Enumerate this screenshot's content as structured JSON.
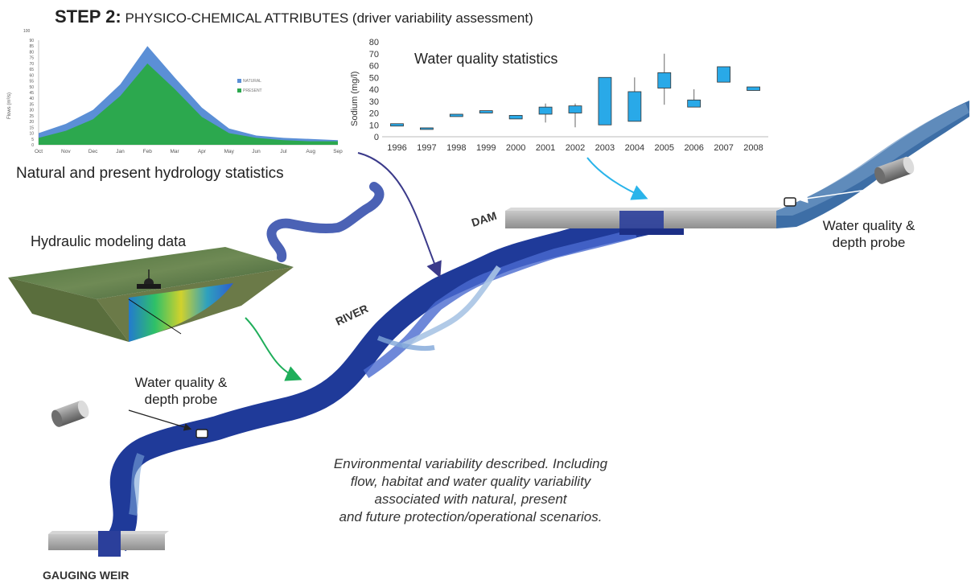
{
  "header": {
    "step": "STEP 2:",
    "title": "PHYSICO-CHEMICAL ATTRIBUTES (driver variability assessment)"
  },
  "hydrology": {
    "caption": "Natural and present hydrology statistics"
  },
  "water_quality": {
    "caption": "Water quality statistics"
  },
  "hydraulic": {
    "caption": "Hydraulic modeling data"
  },
  "labels": {
    "dam": "DAM",
    "river": "RIVER",
    "gauging_weir": "GAUGING WEIR",
    "probe_right_line1": "Water quality &",
    "probe_right_line2": "depth probe",
    "probe_left_line1": "Water quality &",
    "probe_left_line2": "depth probe"
  },
  "environment_text": {
    "line1": "Environmental variability described. Including",
    "line2": "flow, habitat and water quality variability",
    "line3": "associated with natural, present",
    "line4": "and future protection/operational scenarios."
  },
  "colors": {
    "natural": "#5b8fd6",
    "present": "#2ca84e",
    "box": "#29a9e8",
    "river_dark": "#1f3a99",
    "dam_water": "#3d6ea6"
  },
  "chart_data": [
    {
      "type": "area",
      "title": "",
      "xlabel": "",
      "ylabel": "Flows (m³/s)",
      "ylim": [
        0,
        90
      ],
      "yticks": [
        "0",
        "5",
        "10",
        "15",
        "20",
        "25",
        "30",
        "35",
        "40",
        "45",
        "50",
        "55",
        "60",
        "65",
        "70",
        "75",
        "80",
        "85",
        "90"
      ],
      "ytop_label": "100",
      "categories": [
        "Oct",
        "Nov",
        "Dec",
        "Jan",
        "Feb",
        "Mar",
        "Apr",
        "May",
        "Jun",
        "Jul",
        "Aug",
        "Sep"
      ],
      "legend_position": "right",
      "series": [
        {
          "name": "NATURAL",
          "color": "#5b8fd6",
          "values": [
            10,
            18,
            30,
            52,
            85,
            58,
            32,
            14,
            8,
            6,
            5,
            4
          ]
        },
        {
          "name": "PRESENT",
          "color": "#2ca84e",
          "values": [
            6,
            12,
            22,
            42,
            70,
            48,
            24,
            10,
            6,
            4,
            3,
            3
          ]
        }
      ]
    },
    {
      "type": "box",
      "title": "Water quality statistics",
      "xlabel": "",
      "ylabel": "Sodium (mg/l)",
      "ylim": [
        0,
        80
      ],
      "yticks": [
        "0",
        "10",
        "20",
        "30",
        "40",
        "50",
        "60",
        "70",
        "80"
      ],
      "categories": [
        "1996",
        "1997",
        "1998",
        "1999",
        "2000",
        "2001",
        "2002",
        "2003",
        "2004",
        "2005",
        "2006",
        "2007",
        "2008"
      ],
      "grid": false,
      "boxes": [
        {
          "low": 9,
          "q1": 9,
          "q3": 11,
          "high": 11
        },
        {
          "low": 7,
          "q1": 7,
          "q3": 7.5,
          "high": 7.5
        },
        {
          "low": 17,
          "q1": 17,
          "q3": 19,
          "high": 19
        },
        {
          "low": 20,
          "q1": 20,
          "q3": 22,
          "high": 22
        },
        {
          "low": 15,
          "q1": 15,
          "q3": 18,
          "high": 18
        },
        {
          "low": 12,
          "q1": 19,
          "q3": 25,
          "high": 28
        },
        {
          "low": 8,
          "q1": 20,
          "q3": 26,
          "high": 28
        },
        {
          "low": 10,
          "q1": 10,
          "q3": 50,
          "high": 50
        },
        {
          "low": 13,
          "q1": 13,
          "q3": 38,
          "high": 50
        },
        {
          "low": 27,
          "q1": 41,
          "q3": 54,
          "high": 70
        },
        {
          "low": 25,
          "q1": 25,
          "q3": 31,
          "high": 40
        },
        {
          "low": 46,
          "q1": 46,
          "q3": 59,
          "high": 59
        },
        {
          "low": 39,
          "q1": 39,
          "q3": 42,
          "high": 42
        }
      ]
    }
  ]
}
